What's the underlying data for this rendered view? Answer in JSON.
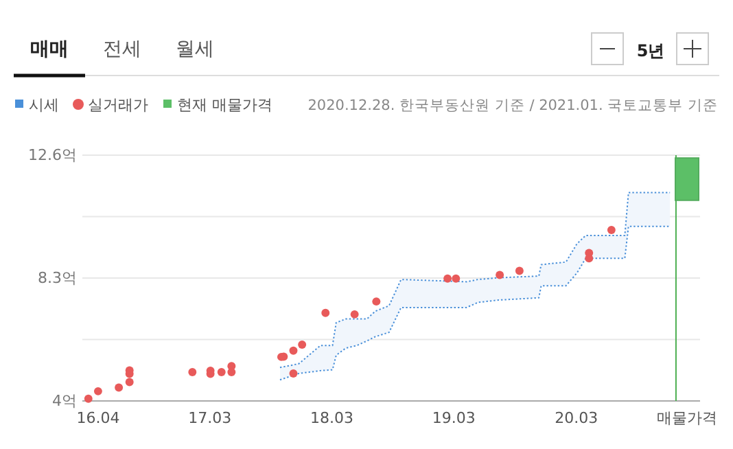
{
  "chart_data": {
    "type": "scatter",
    "annotations": [
      "매매",
      "전세",
      "월세",
      "5년",
      "2020.12.28. 한국부동산원 기준 / 2021.01. 국토교통부 기준",
      "매물가격"
    ],
    "xlim": [
      "2016-02-14",
      "2021-03-06"
    ],
    "xticks": [
      {
        "value": "2016-04",
        "label": "16.04"
      },
      {
        "value": "2017-03",
        "label": "17.03"
      },
      {
        "value": "2018-03",
        "label": "18.03"
      },
      {
        "value": "2019-03",
        "label": "19.03"
      },
      {
        "value": "2020-03",
        "label": "20.03"
      }
    ],
    "ylim": [
      4,
      12.6
    ],
    "yticks": [
      {
        "value": 4,
        "label": "4억"
      },
      {
        "value": 6.15,
        "label": null
      },
      {
        "value": 8.3,
        "label": "8.3억"
      },
      {
        "value": 10.45,
        "label": null
      },
      {
        "value": 12.6,
        "label": "12.6억"
      }
    ],
    "grid": "y",
    "legend": "top left",
    "line_style": "dotted",
    "ref_lines": [
      {
        "axis": "x",
        "value": "2020-12-24",
        "color": "#4caf50"
      }
    ],
    "series": [
      {
        "name": "시세",
        "type": "line",
        "marker": "none",
        "color": "#4a90d9",
        "x": [
          "2017-09-27",
          "2017-11-22",
          "2018-01-26",
          "2018-03-03",
          "2018-03-14",
          "2018-04-12",
          "2018-05-15",
          "2018-06-14",
          "2018-07-09",
          "2018-08-19",
          "2018-09-24",
          "2019-04-08",
          "2019-05-12",
          "2019-07-13",
          "2019-11-10",
          "2019-11-17",
          "2020-01-30",
          "2020-03-03",
          "2020-03-29",
          "2020-07-24",
          "2020-08-04",
          "2020-12-06"
        ],
        "values": [
          5.17,
          5.3,
          5.94,
          5.94,
          6.74,
          6.87,
          6.87,
          6.87,
          7.14,
          7.33,
          8.25,
          8.17,
          8.25,
          8.31,
          8.37,
          8.77,
          8.86,
          9.5,
          9.79,
          9.79,
          11.29,
          11.29
        ],
        "lower": [
          4.74,
          4.96,
          5.06,
          5.09,
          5.6,
          5.85,
          5.94,
          6.1,
          6.25,
          6.4,
          7.27,
          7.27,
          7.45,
          7.53,
          7.61,
          8.03,
          8.03,
          8.48,
          8.99,
          8.99,
          10.11,
          10.11
        ],
        "upper": [
          5.17,
          5.3,
          5.94,
          5.94,
          6.74,
          6.87,
          6.87,
          6.87,
          7.14,
          7.33,
          8.25,
          8.17,
          8.25,
          8.31,
          8.37,
          8.77,
          8.86,
          9.5,
          9.79,
          9.79,
          11.29,
          11.29
        ]
      },
      {
        "type": "line",
        "marker": "none",
        "color": "#4a90d9",
        "x": [
          "2017-09-27",
          "2017-11-22",
          "2018-01-26",
          "2018-03-03",
          "2018-03-14",
          "2018-04-12",
          "2018-05-15",
          "2018-06-14",
          "2018-07-09",
          "2018-08-19",
          "2018-09-24",
          "2019-04-08",
          "2019-05-12",
          "2019-07-13",
          "2019-11-10",
          "2019-11-17",
          "2020-01-30",
          "2020-03-03",
          "2020-03-29",
          "2020-07-24",
          "2020-08-04",
          "2020-12-06"
        ],
        "values": [
          4.74,
          4.96,
          5.06,
          5.09,
          5.6,
          5.85,
          5.94,
          6.1,
          6.25,
          6.4,
          7.27,
          7.27,
          7.45,
          7.53,
          7.61,
          8.03,
          8.03,
          8.48,
          8.99,
          8.99,
          10.11,
          10.11
        ]
      },
      {
        "name": "실거래가",
        "marker": "circle",
        "color": "#e85a5a",
        "x": [
          "2016-03-03",
          "2016-04-01",
          "2016-06-02",
          "2016-07-04",
          "2016-07-04",
          "2016-07-04",
          "2017-01-08",
          "2017-03-03",
          "2017-03-03",
          "2017-04-05",
          "2017-05-05",
          "2017-05-05",
          "2017-10-01",
          "2017-10-08",
          "2017-11-06",
          "2017-11-06",
          "2017-12-02",
          "2018-02-10",
          "2018-05-08",
          "2018-07-12",
          "2019-02-10",
          "2019-03-07",
          "2019-07-16",
          "2019-09-13",
          "2020-04-08",
          "2020-04-08",
          "2020-06-14"
        ],
        "values": [
          4.08,
          4.34,
          4.47,
          5.07,
          4.95,
          4.66,
          5.01,
          5.06,
          4.95,
          5.01,
          5.22,
          5.01,
          5.54,
          5.55,
          5.76,
          4.96,
          5.97,
          7.08,
          7.03,
          7.48,
          8.28,
          8.28,
          8.41,
          8.55,
          9.18,
          8.99,
          9.98
        ]
      },
      {
        "name": "현재 매물가격",
        "type": "bar",
        "color": "#5cbf67",
        "x": [
          "2021-01-26"
        ],
        "base": [
          11.02
        ],
        "values": [
          1.48
        ]
      }
    ]
  }
}
